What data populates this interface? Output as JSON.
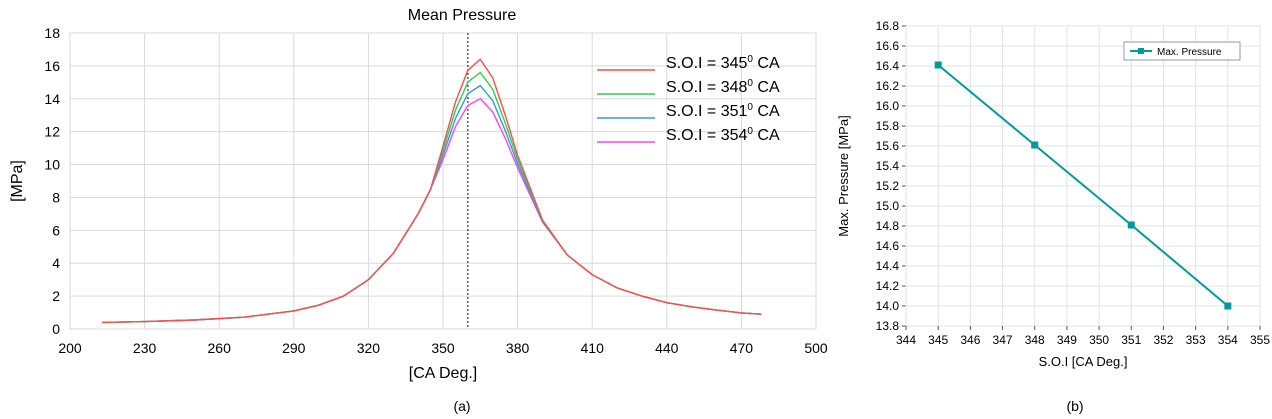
{
  "chart_data": [
    {
      "type": "line",
      "title": "Mean Pressure",
      "xlabel": "[CA Deg.]",
      "ylabel": "[MPa]",
      "xlim": [
        200,
        500
      ],
      "ylim": [
        0,
        18
      ],
      "xticks": [
        200,
        230,
        260,
        290,
        320,
        350,
        380,
        410,
        440,
        470,
        500
      ],
      "yticks": [
        0,
        2,
        4,
        6,
        8,
        10,
        12,
        14,
        16,
        18
      ],
      "grid": true,
      "legend_position": "top-right",
      "reference_line_x": 360,
      "series": [
        {
          "name": "S.O.I = 345",
          "sup": "0",
          "unit": " CA",
          "color": "#ff4d4d",
          "peak": 16.4
        },
        {
          "name": "S.O.I = 348",
          "sup": "0",
          "unit": " CA",
          "color": "#33cc55",
          "peak": 15.6
        },
        {
          "name": "S.O.I = 351",
          "sup": "0",
          "unit": " CA",
          "color": "#3399dd",
          "peak": 14.8
        },
        {
          "name": "S.O.I = 354",
          "sup": "0",
          "unit": " CA",
          "color": "#ff44ee",
          "peak": 14.0
        }
      ],
      "base_curve": {
        "x": [
          213,
          230,
          250,
          270,
          290,
          300,
          310,
          320,
          330,
          340,
          345,
          350,
          355,
          360,
          365,
          370,
          375,
          380,
          390,
          400,
          410,
          420,
          430,
          440,
          450,
          460,
          470,
          478
        ],
        "y": [
          0.4,
          0.45,
          0.55,
          0.72,
          1.1,
          1.45,
          2.0,
          3.0,
          4.6,
          7.0,
          8.5,
          10.3,
          12.3,
          13.6,
          14.0,
          13.2,
          11.6,
          9.8,
          6.5,
          4.5,
          3.3,
          2.5,
          2.0,
          1.6,
          1.35,
          1.15,
          0.98,
          0.9
        ]
      },
      "panel_label": "(a)"
    },
    {
      "type": "line",
      "xlabel": "S.O.I [CA Deg.]",
      "ylabel": "Max. Pressure [MPa]",
      "xlim": [
        344,
        355
      ],
      "ylim": [
        13.8,
        16.8
      ],
      "xticks": [
        344,
        345,
        346,
        347,
        348,
        349,
        350,
        351,
        352,
        353,
        354,
        355
      ],
      "yticks": [
        "13.8",
        "14.0",
        "14.2",
        "14.4",
        "14.6",
        "14.8",
        "15.0",
        "15.2",
        "15.4",
        "15.6",
        "15.8",
        "16.0",
        "16.2",
        "16.4",
        "16.6",
        "16.8"
      ],
      "grid": true,
      "legend_position": "top-right",
      "series": [
        {
          "name": "Max. Pressure",
          "color": "#00999a",
          "x": [
            345,
            348,
            351,
            354
          ],
          "y": [
            16.41,
            15.61,
            14.81,
            14.0
          ]
        }
      ],
      "panel_label": "(b)"
    }
  ]
}
